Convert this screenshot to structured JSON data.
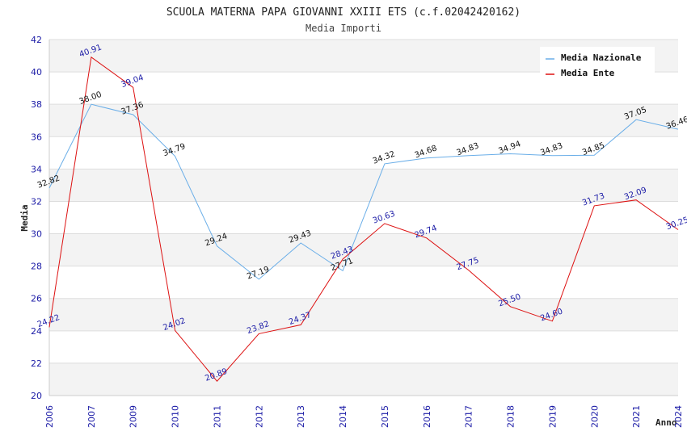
{
  "chart_data": {
    "type": "line",
    "title": "SCUOLA MATERNA PAPA GIOVANNI XXIII ETS (c.f.02042420162)",
    "subtitle": "Media Importi",
    "xlabel": "Anno",
    "ylabel": "Media",
    "ylim": [
      20,
      42
    ],
    "yticks": [
      "20",
      "22",
      "24",
      "26",
      "28",
      "30",
      "32",
      "34",
      "36",
      "38",
      "40",
      "42"
    ],
    "x": [
      "2006",
      "2007",
      "2009",
      "2010",
      "2011",
      "2012",
      "2013",
      "2014",
      "2015",
      "2016",
      "2017",
      "2018",
      "2019",
      "2020",
      "2021",
      "2024"
    ],
    "grid": "horizontal bands",
    "legend_position": "top-right",
    "series": [
      {
        "name": "Media Nazionale",
        "color": "#6aaee8",
        "label_color": "#111111",
        "values": [
          32.82,
          38.0,
          37.36,
          34.79,
          29.24,
          27.19,
          29.43,
          27.71,
          34.32,
          34.68,
          34.83,
          34.94,
          34.83,
          34.85,
          37.05,
          36.46
        ],
        "labels": [
          "32.82",
          "38.00",
          "37.36",
          "34.79",
          "29.24",
          "27.19",
          "29.43",
          "27.71",
          "34.32",
          "34.68",
          "34.83",
          "34.94",
          "34.83",
          "34.85",
          "37.05",
          "36.46"
        ]
      },
      {
        "name": "Media Ente",
        "color": "#dd1111",
        "label_color": "#1a1aa6",
        "values": [
          24.22,
          40.91,
          39.04,
          24.02,
          20.89,
          23.82,
          24.37,
          28.43,
          30.63,
          29.74,
          27.75,
          25.5,
          24.6,
          31.73,
          32.09,
          30.25
        ],
        "labels": [
          "24.22",
          "40.91",
          "39.04",
          "24.02",
          "20.89",
          "23.82",
          "24.37",
          "28.43",
          "30.63",
          "29.74",
          "27.75",
          "25.50",
          "24.60",
          "31.73",
          "32.09",
          "30.25"
        ]
      }
    ]
  }
}
